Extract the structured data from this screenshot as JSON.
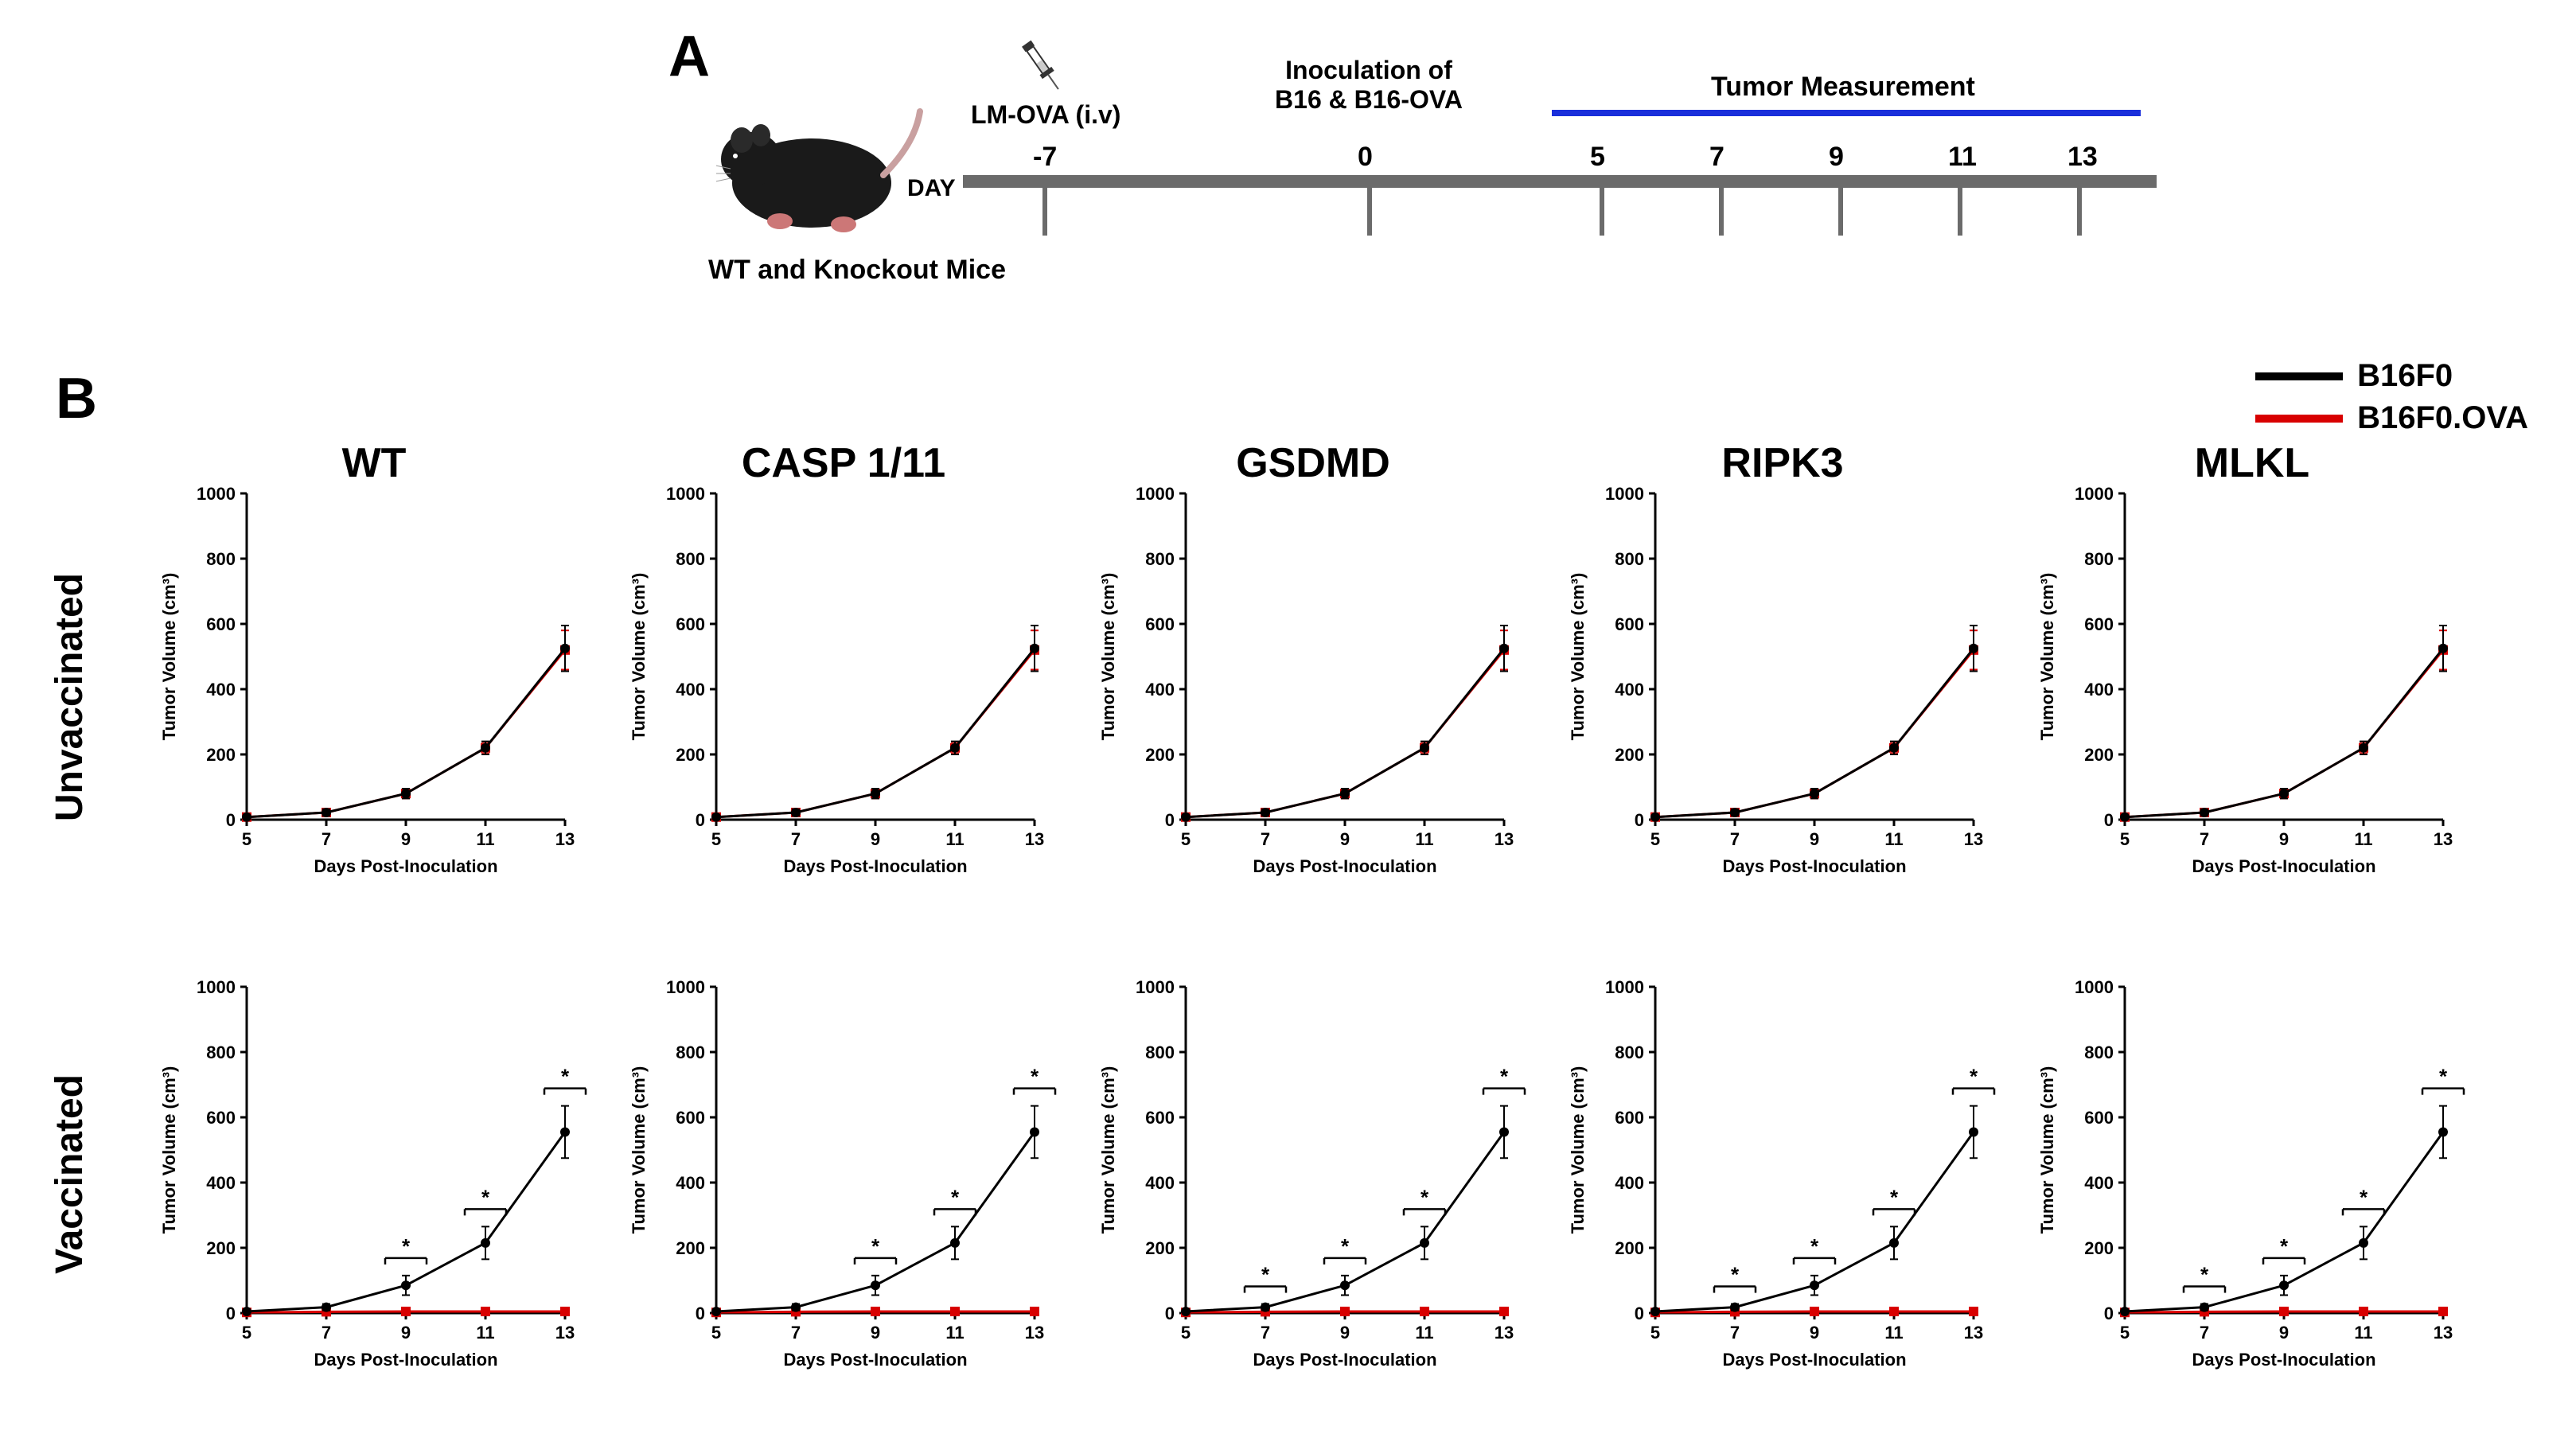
{
  "panelLabels": {
    "A": "A",
    "B": "B"
  },
  "panelA": {
    "mouseCaption": "WT and Knockout Mice",
    "dayLabel": "DAY",
    "lmova": "LM-OVA (i.v)",
    "inoculation": "Inoculation of B16 & B16-OVA",
    "tumorMeasurement": "Tumor Measurement",
    "timeline": {
      "bar_color": "#6b6b6b",
      "measurement_bar_color": "#1a2fdb",
      "ticks": [
        {
          "label": "-7",
          "x": 100
        },
        {
          "label": "0",
          "x": 508
        },
        {
          "label": "5",
          "x": 800
        },
        {
          "label": "7",
          "x": 950
        },
        {
          "label": "9",
          "x": 1100
        },
        {
          "label": "11",
          "x": 1250
        },
        {
          "label": "13",
          "x": 1400
        }
      ]
    },
    "syringe": {
      "body_color": "#dddddd",
      "plunger_color": "#333333",
      "needle_color": "#555555"
    }
  },
  "legend": {
    "items": [
      {
        "label": "B16F0",
        "color": "#000000"
      },
      {
        "label": "B16F0.OVA",
        "color": "#d80000"
      }
    ]
  },
  "axes": {
    "ylabel": "Tumor Volume (cm³)",
    "xlabel": "Days Post-Inoculation",
    "ylim": [
      0,
      1000
    ],
    "ytick_step": 200,
    "yticks": [
      0,
      200,
      400,
      600,
      800,
      1000
    ],
    "xticks": [
      5,
      7,
      9,
      11,
      13
    ],
    "xlim": [
      5,
      13
    ],
    "label_fontsize": 22,
    "tick_fontsize": 22,
    "title_fontsize": 52,
    "axis_color": "#000000",
    "axis_width": 3,
    "marker_radius": 6,
    "line_width": 3
  },
  "columns": [
    "WT",
    "CASP 1/11",
    "GSDMD",
    "RIPK3",
    "MLKL"
  ],
  "rows": [
    "Unvaccinated",
    "Vaccinated"
  ],
  "charts": {
    "unvaccinated": {
      "B16F0": {
        "color": "#000000",
        "x": [
          5,
          7,
          9,
          11,
          13
        ],
        "y": [
          8,
          22,
          80,
          220,
          525
        ],
        "err": [
          6,
          10,
          15,
          20,
          70
        ],
        "marker": "circle"
      },
      "B16F0_OVA": {
        "color": "#d80000",
        "x": [
          5,
          7,
          9,
          11,
          13
        ],
        "y": [
          8,
          22,
          80,
          220,
          520
        ],
        "err": [
          6,
          10,
          15,
          18,
          60
        ],
        "marker": "square"
      }
    },
    "vaccinated": {
      "B16F0": {
        "color": "#000000",
        "x": [
          5,
          7,
          9,
          11,
          13
        ],
        "y": [
          5,
          18,
          85,
          215,
          555
        ],
        "err": [
          5,
          10,
          30,
          50,
          80
        ],
        "marker": "circle"
      },
      "B16F0_OVA": {
        "color": "#d80000",
        "x": [
          5,
          7,
          9,
          11,
          13
        ],
        "y": [
          2,
          4,
          5,
          5,
          5
        ],
        "err": [
          3,
          3,
          3,
          3,
          3
        ],
        "marker": "square"
      },
      "sig_at": [
        9,
        11,
        13
      ]
    },
    "gsdmd_vaccinated_sig_at": [
      7,
      9,
      11,
      13
    ],
    "ripk3_vaccinated_sig_at": [
      7,
      9,
      11,
      13
    ],
    "mlkl_vaccinated_sig_at": [
      7,
      9,
      11,
      13
    ]
  },
  "background_color": "#ffffff"
}
